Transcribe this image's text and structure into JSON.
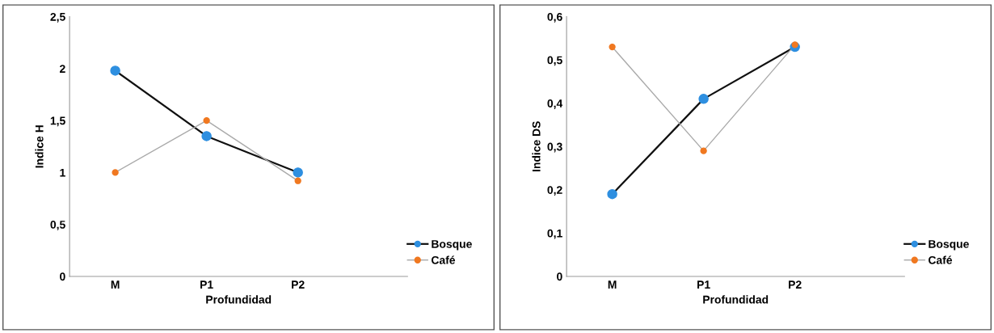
{
  "chart_data": [
    {
      "type": "line",
      "categories": [
        "M",
        "P1",
        "P2"
      ],
      "xlabel": "Profundidad",
      "ylabel": "Indice H",
      "ylim": [
        0,
        2.5
      ],
      "yticks": [
        0,
        {
          "value": 0.5,
          "label": "0,5"
        },
        1,
        {
          "value": 1.5,
          "label": "1,5"
        },
        2,
        {
          "value": 2.5,
          "label": "2,5"
        }
      ],
      "grid": false,
      "legend": "bottom right",
      "marker": "circle",
      "series": [
        {
          "name": "Bosque",
          "color": "#2e8fe0",
          "values": [
            1.98,
            1.35,
            1.0
          ]
        },
        {
          "name": "Café",
          "color": "#f07820",
          "values": [
            1.0,
            1.5,
            0.92
          ]
        }
      ]
    },
    {
      "type": "line",
      "categories": [
        "M",
        "P1",
        "P2"
      ],
      "xlabel": "Profundidad",
      "ylabel": "Indice DS",
      "ylim": [
        0,
        0.6
      ],
      "yticks": [
        0,
        {
          "value": 0.1,
          "label": "0,1"
        },
        {
          "value": 0.2,
          "label": "0,2"
        },
        {
          "value": 0.3,
          "label": "0,3"
        },
        {
          "value": 0.4,
          "label": "0,4"
        },
        {
          "value": 0.5,
          "label": "0,5"
        },
        {
          "value": 0.6,
          "label": "0,6"
        }
      ],
      "grid": false,
      "legend": "bottom right",
      "marker": "circle",
      "series": [
        {
          "name": "Bosque",
          "color": "#2e8fe0",
          "values": [
            0.19,
            0.41,
            0.53
          ]
        },
        {
          "name": "Café",
          "color": "#f07820",
          "values": [
            0.53,
            0.29,
            0.535
          ]
        }
      ]
    }
  ]
}
